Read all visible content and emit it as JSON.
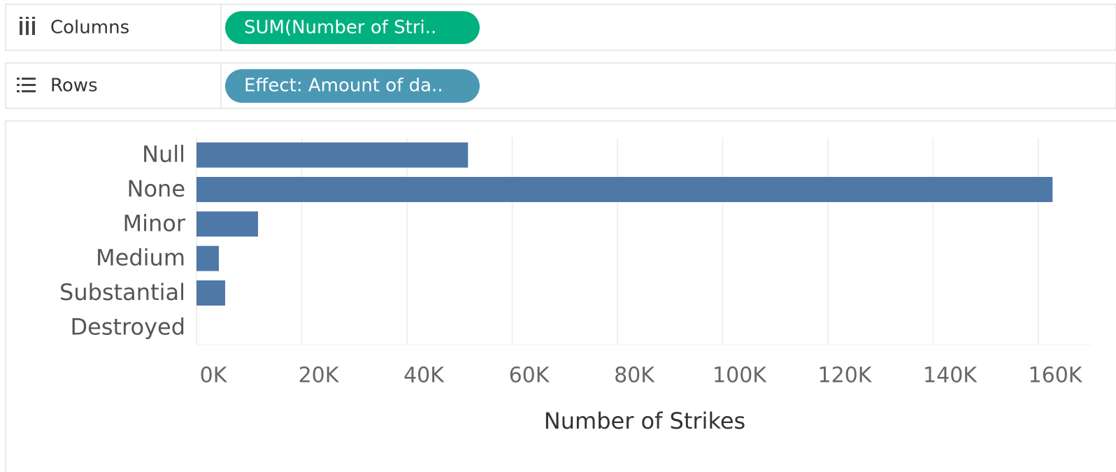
{
  "shelves": {
    "columns": {
      "label": "Columns",
      "pill": "SUM(Number of Stri.."
    },
    "rows": {
      "label": "Rows",
      "pill": "Effect: Amount of da.."
    }
  },
  "chart_data": {
    "type": "bar",
    "orientation": "horizontal",
    "categories": [
      "Null",
      "None",
      "Minor",
      "Medium",
      "Substantial",
      "Destroyed"
    ],
    "values": [
      51600,
      162700,
      11700,
      4250,
      5450,
      0
    ],
    "color": "#4e79a7",
    "xlabel": "Number of Strikes",
    "xlim": [
      0,
      170000
    ],
    "xticks": [
      {
        "value": 0,
        "label": "0K"
      },
      {
        "value": 20000,
        "label": "20K"
      },
      {
        "value": 40000,
        "label": "40K"
      },
      {
        "value": 60000,
        "label": "60K"
      },
      {
        "value": 80000,
        "label": "80K"
      },
      {
        "value": 100000,
        "label": "100K"
      },
      {
        "value": 120000,
        "label": "120K"
      },
      {
        "value": 140000,
        "label": "140K"
      },
      {
        "value": 160000,
        "label": "160K"
      }
    ],
    "grid": true
  }
}
